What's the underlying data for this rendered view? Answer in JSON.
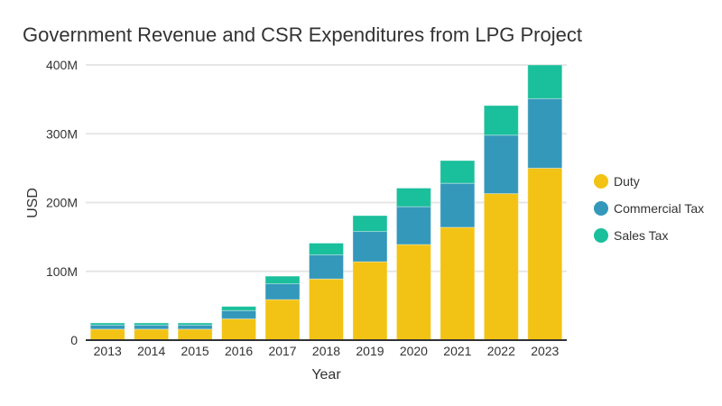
{
  "chart_data": {
    "type": "bar",
    "stacked": true,
    "title": "Government Revenue and CSR Expenditures from LPG Project",
    "xlabel": "Year",
    "ylabel": "USD",
    "ylim": [
      0,
      400000000
    ],
    "yticks": [
      "0",
      "100M",
      "200M",
      "300M",
      "400M"
    ],
    "ytick_values": [
      0,
      100000000,
      200000000,
      300000000,
      400000000
    ],
    "grid": true,
    "legend_position": "right",
    "categories": [
      "2013",
      "2014",
      "2015",
      "2016",
      "2017",
      "2018",
      "2019",
      "2020",
      "2021",
      "2022",
      "2023"
    ],
    "series": [
      {
        "name": "Duty",
        "color": "#f2c314",
        "values": [
          16,
          16,
          16,
          31,
          59,
          89,
          114,
          139,
          164,
          213,
          250
        ]
      },
      {
        "name": "Commercial Tax",
        "color": "#3498bb",
        "values": [
          6,
          6,
          6,
          12,
          23,
          35,
          44,
          55,
          64,
          85,
          101
        ]
      },
      {
        "name": "Sales Tax",
        "color": "#1abf9b",
        "values": [
          3,
          3,
          3,
          6,
          11,
          17,
          23,
          27,
          33,
          43,
          49
        ]
      }
    ],
    "value_unit": "millions USD"
  }
}
